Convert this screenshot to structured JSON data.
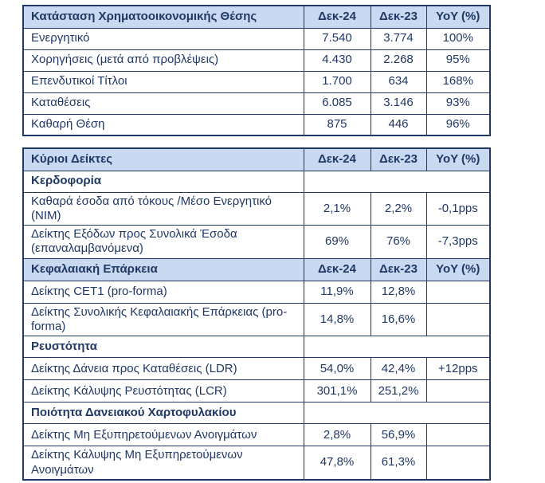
{
  "colors": {
    "navy_text": "#1F3864",
    "border": "#1F3864",
    "header_background": "#C9D9F1",
    "page_background": "#FFFFFF"
  },
  "table1": {
    "title": "Κατάσταση Χρηματοοικονομικής Θέσης",
    "columns": {
      "dec24": "Δεκ-24",
      "dec23": "Δεκ-23",
      "yoy": "YoY (%)"
    },
    "rows": [
      {
        "label": "Ενεργητικό",
        "dec24": "7.540",
        "dec23": "3.774",
        "yoy": "100%"
      },
      {
        "label": "Χορηγήσεις (μετά από προβλέψεις)",
        "dec24": "4.430",
        "dec23": "2.268",
        "yoy": "95%"
      },
      {
        "label": "Επενδυτικοί Τίτλοι",
        "dec24": "1.700",
        "dec23": "634",
        "yoy": "168%"
      },
      {
        "label": "Καταθέσεις",
        "dec24": "6.085",
        "dec23": "3.146",
        "yoy": "93%"
      },
      {
        "label": "Καθαρή Θέση",
        "dec24": "875",
        "dec23": "446",
        "yoy": "96%"
      }
    ]
  },
  "table2": {
    "title": "Κύριοι Δείκτες",
    "columns": {
      "dec24": "Δεκ-24",
      "dec23": "Δεκ-23",
      "yoy": "YoY (%)"
    },
    "rows": [
      {
        "type": "section",
        "label": "Κερδοφορία"
      },
      {
        "type": "data",
        "label": "Καθαρά έσοδα από τόκους /Μέσο Ενεργητικό (NIM)",
        "dec24": "2,1%",
        "dec23": "2,2%",
        "yoy": "-0,1pps"
      },
      {
        "type": "data",
        "label": "Δείκτης Εξόδων προς Συνολικά Έσοδα (επαναλαμβανόμενα)",
        "dec24": "69%",
        "dec23": "76%",
        "yoy": "-7,3pps"
      },
      {
        "type": "subheader",
        "label": "Κεφαλαιακή Επάρκεια",
        "dec24": "Δεκ-24",
        "dec23": "Δεκ-23",
        "yoy": "YoY (%)"
      },
      {
        "type": "data",
        "label": "Δείκτης CET1 (pro-forma)",
        "dec24": "11,9%",
        "dec23": "12,8%",
        "yoy": ""
      },
      {
        "type": "data",
        "label": "Δείκτης Συνολικής Κεφαλαιακής Επάρκειας (pro-forma)",
        "dec24": "14,8%",
        "dec23": "16,6%",
        "yoy": ""
      },
      {
        "type": "section",
        "label": "Ρευστότητα"
      },
      {
        "type": "data",
        "label": "Δείκτης Δάνεια προς Καταθέσεις (LDR)",
        "dec24": "54,0%",
        "dec23": "42,4%",
        "yoy": "+12pps"
      },
      {
        "type": "data",
        "label": "Δείκτης Κάλυψης Ρευστότητας (LCR)",
        "dec24": "301,1%",
        "dec23": "251,2%",
        "yoy": ""
      },
      {
        "type": "section",
        "label": "Ποιότητα Δανειακού Χαρτοφυλακίου"
      },
      {
        "type": "data",
        "label": "Δείκτης Μη Εξυπηρετούμενων Ανοιγμάτων",
        "dec24": "2,8%",
        "dec23": "56,9%",
        "yoy": ""
      },
      {
        "type": "data",
        "label": "Δείκτης Κάλυψης Μη Εξυπηρετούμενων Ανοιγμάτων",
        "dec24": "47,8%",
        "dec23": "61,3%",
        "yoy": ""
      }
    ]
  }
}
